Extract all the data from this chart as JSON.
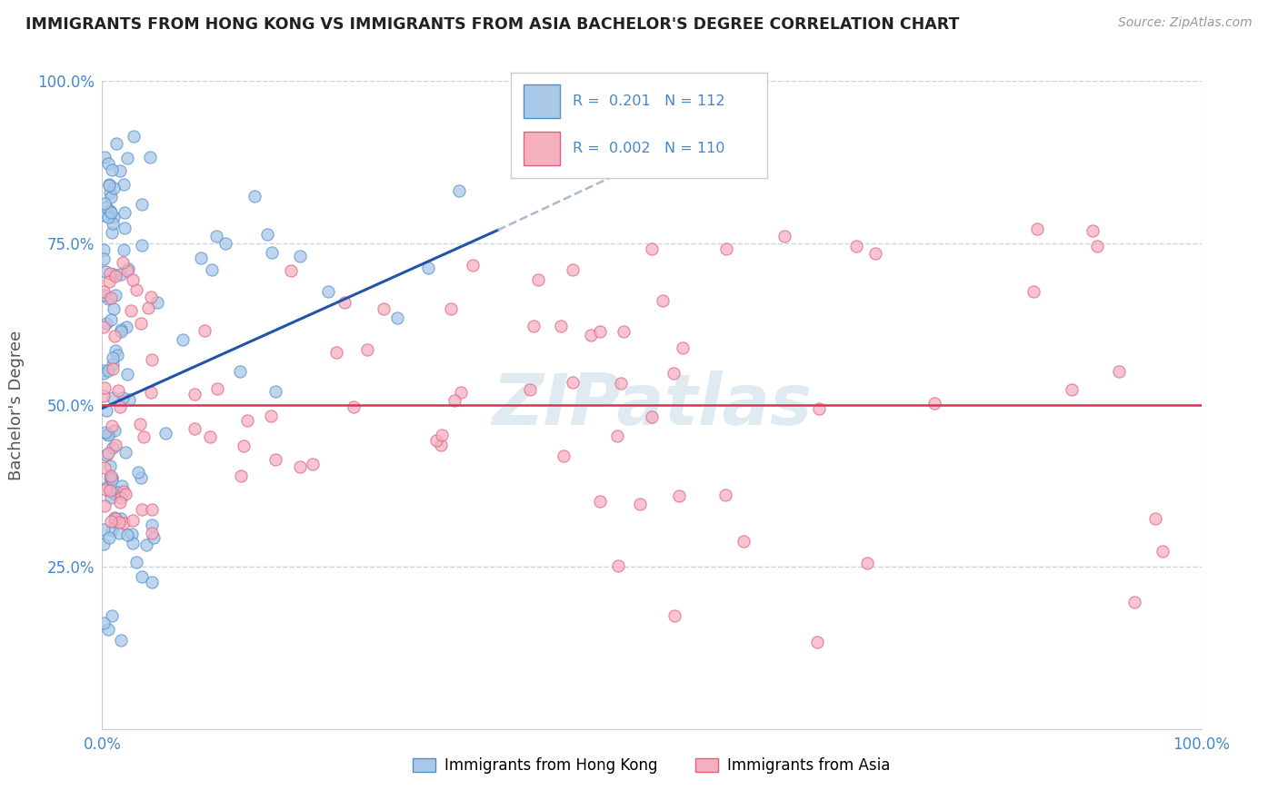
{
  "title": "IMMIGRANTS FROM HONG KONG VS IMMIGRANTS FROM ASIA BACHELOR'S DEGREE CORRELATION CHART",
  "source_text": "Source: ZipAtlas.com",
  "ylabel": "Bachelor's Degree",
  "xlim": [
    0.0,
    1.0
  ],
  "ylim": [
    0.0,
    1.0
  ],
  "x_tick_labels": [
    "0.0%",
    "100.0%"
  ],
  "x_tick_positions": [
    0.0,
    1.0
  ],
  "y_tick_labels": [
    "25.0%",
    "50.0%",
    "75.0%",
    "100.0%"
  ],
  "y_tick_positions": [
    0.25,
    0.5,
    0.75,
    1.0
  ],
  "legend1_label": "Immigrants from Hong Kong",
  "legend2_label": "Immigrants from Asia",
  "R1": "0.201",
  "N1": "112",
  "R2": "0.002",
  "N2": "110",
  "color_hk_face": "#aac8e8",
  "color_hk_edge": "#5090c8",
  "color_asia_face": "#f5b0c0",
  "color_asia_edge": "#e06080",
  "trendline_hk_solid_color": "#2255aa",
  "trendline_hk_dash_color": "#aabbcc",
  "trendline_asia_color": "#dd3355",
  "watermark_color": "#ccdde8",
  "background_color": "#ffffff",
  "grid_color": "#c8d4e0",
  "title_color": "#222222",
  "label_color": "#4488cc",
  "ylabel_color": "#555555",
  "legend_edge_color": "#cccccc",
  "trendline_hk_x0": 0.0,
  "trendline_hk_y0": 0.495,
  "trendline_hk_x1": 0.36,
  "trendline_hk_y1": 0.77,
  "trendline_hk_dash_x0": 0.36,
  "trendline_hk_dash_y0": 0.77,
  "trendline_hk_dash_x1": 0.6,
  "trendline_hk_dash_y1": 0.96,
  "trendline_asia_y": 0.5
}
